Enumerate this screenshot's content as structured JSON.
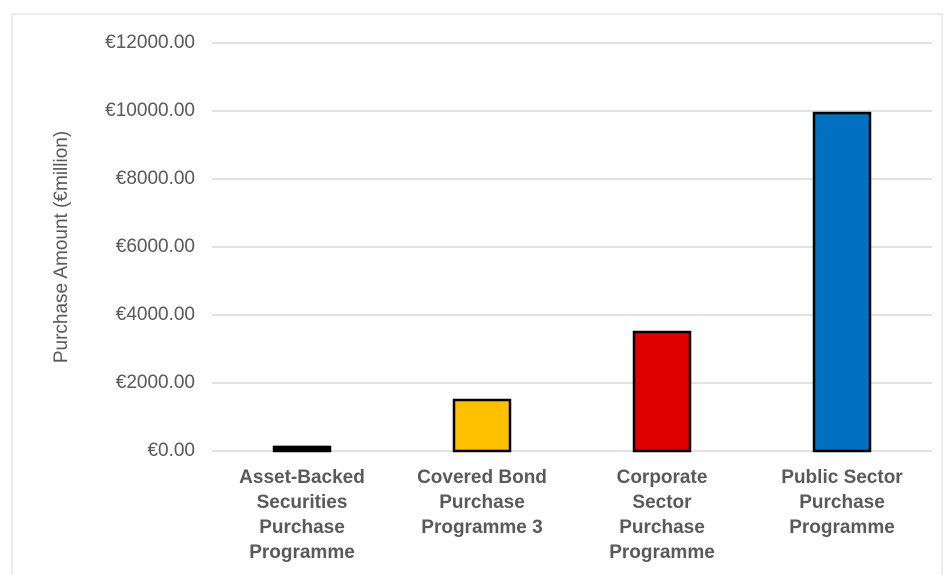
{
  "chart_data": {
    "type": "bar",
    "y_label": "Purchase Amount (€million)",
    "categories": [
      "Asset-Backed Securities Purchase Programme",
      "Covered Bond Purchase Programme 3",
      "Corporate Sector Purchase Programme",
      "Public Sector Purchase Programme"
    ],
    "values": [
      120,
      1500,
      3500,
      9940
    ],
    "colors": [
      "#000000",
      "#ffc000",
      "#e00000",
      "#0070c0"
    ],
    "ylim": [
      0,
      12000
    ],
    "yticks": [
      {
        "value": 0,
        "label": "€0.00"
      },
      {
        "value": 2000,
        "label": "€2000.00"
      },
      {
        "value": 4000,
        "label": "€4000.00"
      },
      {
        "value": 6000,
        "label": "€6000.00"
      },
      {
        "value": 8000,
        "label": "€8000.00"
      },
      {
        "value": 10000,
        "label": "€10000.00"
      },
      {
        "value": 12000,
        "label": "€12000.00"
      }
    ],
    "grid": true
  }
}
